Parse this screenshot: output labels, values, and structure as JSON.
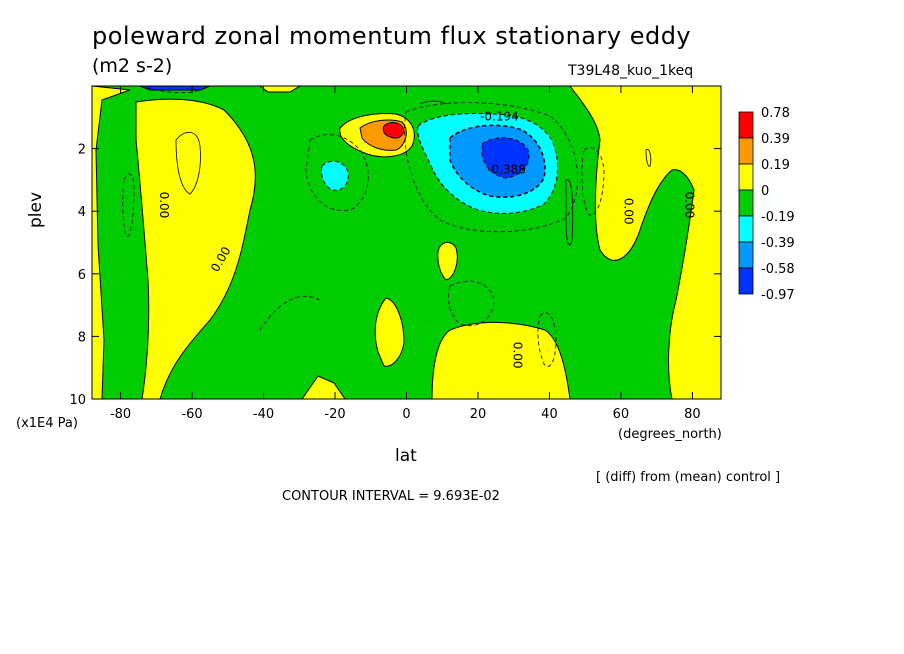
{
  "header": {
    "title": "poleward zonal momentum flux stationary eddy",
    "units": "(m2 s-2)",
    "experiment": "T39L48_kuo_1keq"
  },
  "footer": {
    "comparison_note": "[ (diff) from (mean) control ]",
    "contour_interval": "CONTOUR INTERVAL = 9.693E-02"
  },
  "chart_data": {
    "type": "heatmap",
    "title": "poleward zonal momentum flux stationary eddy",
    "subtitle": "(m2 s-2)",
    "xlabel": "lat",
    "x_unit": "(degrees_north)",
    "ylabel": "plev",
    "y_unit": "(x1E4 Pa)",
    "xlim": [
      -88,
      88
    ],
    "ylim": [
      10,
      0
    ],
    "x_ticks": [
      "-80",
      "-60",
      "-40",
      "-20",
      "0",
      "20",
      "40",
      "60",
      "80"
    ],
    "y_ticks": [
      "2",
      "4",
      "6",
      "8",
      "10"
    ],
    "legend": {
      "placement": "right",
      "labels": [
        "0.78",
        "0.39",
        "0.19",
        "0",
        "-0.19",
        "-0.39",
        "-0.58",
        "-0.97"
      ],
      "colors": [
        "#ff0000",
        "#ff9900",
        "#ffff00",
        "#00cc00",
        "#00ffff",
        "#0099ff",
        "#0033ff"
      ]
    },
    "contour_labels": [
      {
        "text": "0.00",
        "lat": -69,
        "plev": 3.8
      },
      {
        "text": "0.00",
        "lat": -51,
        "plev": 5.6
      },
      {
        "text": "0.00",
        "lat": 61,
        "plev": 4.0
      },
      {
        "text": "0.00",
        "lat": 78,
        "plev": 3.8
      },
      {
        "text": "0.00",
        "lat": 30,
        "plev": 8.6
      },
      {
        "text": "-0.194",
        "lat": 26,
        "plev": 1.1
      },
      {
        "text": "-0.388",
        "lat": 28,
        "plev": 2.8
      }
    ],
    "colors": {
      "high": "#ff0000",
      "moderate": "#ff9900",
      "positive": "#ffff00",
      "neutral": "#00cc00",
      "negative": "#00ffff",
      "strong_negative": "#0099ff",
      "very_negative": "#0033ff"
    }
  }
}
